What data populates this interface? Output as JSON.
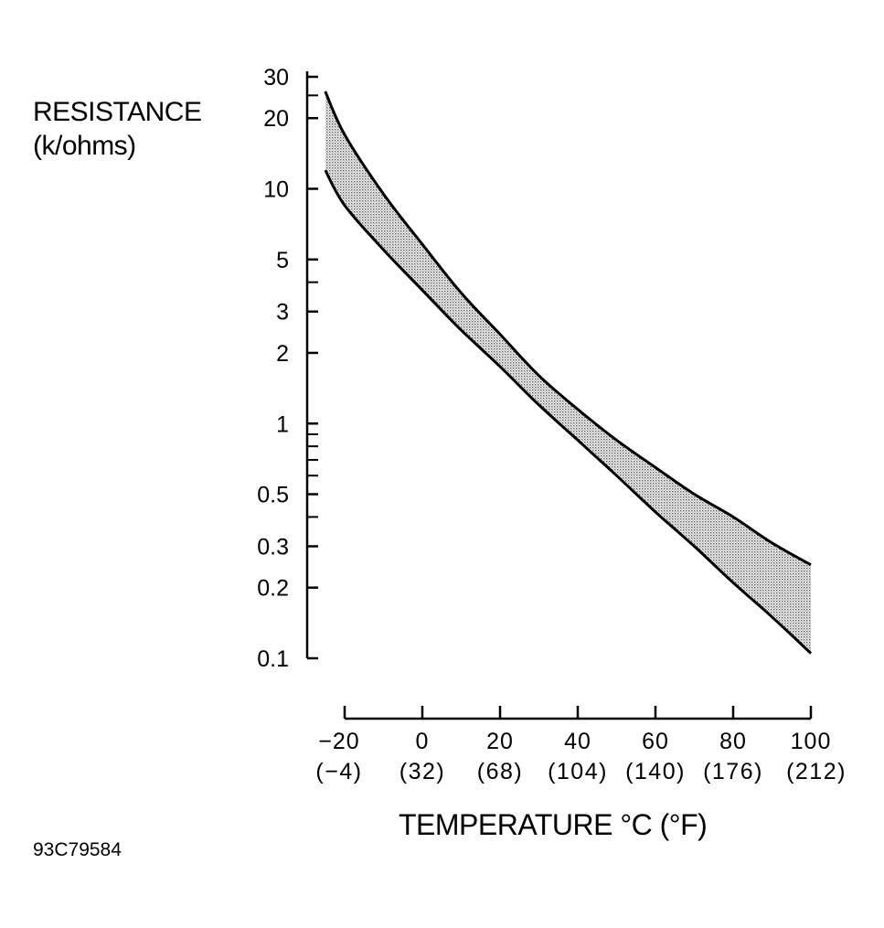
{
  "chart_data": {
    "type": "area",
    "y_axis": {
      "label_line1": "RESISTANCE",
      "label_line2": "(k/ohms)",
      "scale": "log",
      "ylim": [
        0.1,
        30
      ],
      "ticks": [
        {
          "value": 30,
          "label": "30"
        },
        {
          "value": 20,
          "label": "20"
        },
        {
          "value": 10,
          "label": "10"
        },
        {
          "value": 5,
          "label": "5"
        },
        {
          "value": 3,
          "label": "3"
        },
        {
          "value": 2,
          "label": "2"
        },
        {
          "value": 1,
          "label": "1"
        },
        {
          "value": 0.5,
          "label": "0.5"
        },
        {
          "value": 0.3,
          "label": "0.3"
        },
        {
          "value": 0.2,
          "label": "0.2"
        },
        {
          "value": 0.1,
          "label": "0.1"
        }
      ],
      "minor_ticks": [
        25,
        4,
        0.9,
        0.8,
        0.7,
        0.6,
        0.4
      ]
    },
    "x_axis": {
      "title": "TEMPERATURE °C (°F)",
      "xlim": [
        -20,
        100
      ],
      "ticks": [
        {
          "value": -20,
          "label": "−20",
          "sublabel": "(−4)"
        },
        {
          "value": 0,
          "label": "0",
          "sublabel": "(32)"
        },
        {
          "value": 20,
          "label": "20",
          "sublabel": "(68)"
        },
        {
          "value": 40,
          "label": "40",
          "sublabel": "(104)"
        },
        {
          "value": 60,
          "label": "60",
          "sublabel": "(140)"
        },
        {
          "value": 80,
          "label": "80",
          "sublabel": "(176)"
        },
        {
          "value": 100,
          "label": "100",
          "sublabel": "(212)"
        }
      ]
    },
    "series": [
      {
        "role": "upper",
        "points": [
          {
            "x": -25,
            "y": 26
          },
          {
            "x": -20,
            "y": 17
          },
          {
            "x": -10,
            "y": 9.5
          },
          {
            "x": 0,
            "y": 5.8
          },
          {
            "x": 10,
            "y": 3.6
          },
          {
            "x": 20,
            "y": 2.4
          },
          {
            "x": 30,
            "y": 1.6
          },
          {
            "x": 40,
            "y": 1.15
          },
          {
            "x": 50,
            "y": 0.85
          },
          {
            "x": 60,
            "y": 0.65
          },
          {
            "x": 70,
            "y": 0.5
          },
          {
            "x": 80,
            "y": 0.4
          },
          {
            "x": 90,
            "y": 0.31
          },
          {
            "x": 100,
            "y": 0.25
          }
        ]
      },
      {
        "role": "lower",
        "points": [
          {
            "x": -25,
            "y": 12
          },
          {
            "x": -20,
            "y": 8.5
          },
          {
            "x": -10,
            "y": 5.5
          },
          {
            "x": 0,
            "y": 3.7
          },
          {
            "x": 10,
            "y": 2.5
          },
          {
            "x": 20,
            "y": 1.75
          },
          {
            "x": 30,
            "y": 1.2
          },
          {
            "x": 40,
            "y": 0.85
          },
          {
            "x": 50,
            "y": 0.6
          },
          {
            "x": 60,
            "y": 0.42
          },
          {
            "x": 70,
            "y": 0.3
          },
          {
            "x": 80,
            "y": 0.21
          },
          {
            "x": 90,
            "y": 0.15
          },
          {
            "x": 100,
            "y": 0.105
          }
        ]
      }
    ],
    "band_fill": "stippled gray between curves",
    "grid": false,
    "colors": {
      "line": "#000000",
      "band": "#9a9a9a",
      "background": "#ffffff"
    }
  },
  "figure_id": "93C79584"
}
